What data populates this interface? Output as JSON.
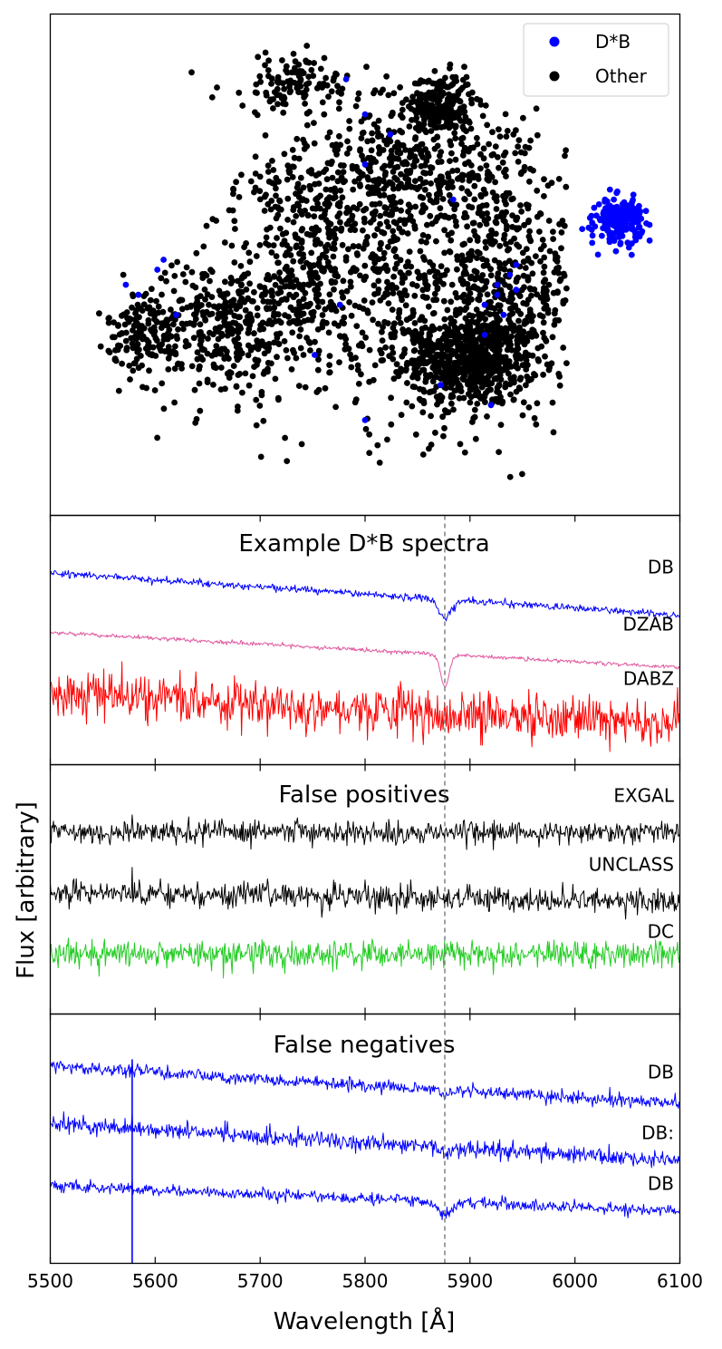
{
  "colors": {
    "dstarb": "#0000ff",
    "other": "#000000",
    "pink": "#e05aa0",
    "red": "#ff0000",
    "green": "#22cc22",
    "marker_line": "#808080"
  },
  "chart_data": [
    {
      "type": "scatter",
      "panel": "embedding",
      "title": "",
      "legend": {
        "placement": "top-right",
        "entries": [
          "D*B",
          "Other"
        ]
      },
      "ticks": "none",
      "series": [
        {
          "name": "Other",
          "clusters": [
            {
              "cx": 0.67,
              "cy": 0.31,
              "sx": 0.05,
              "sy": 0.045,
              "n": 600
            },
            {
              "cx": 0.62,
              "cy": 0.45,
              "sx": 0.14,
              "sy": 0.14,
              "n": 800
            },
            {
              "cx": 0.62,
              "cy": 0.82,
              "sx": 0.025,
              "sy": 0.03,
              "n": 250
            },
            {
              "cx": 0.62,
              "cy": 0.7,
              "sx": 0.08,
              "sy": 0.06,
              "n": 250
            },
            {
              "cx": 0.15,
              "cy": 0.37,
              "sx": 0.03,
              "sy": 0.04,
              "n": 140
            },
            {
              "cx": 0.27,
              "cy": 0.37,
              "sx": 0.06,
              "sy": 0.07,
              "n": 300
            },
            {
              "cx": 0.4,
              "cy": 0.45,
              "sx": 0.07,
              "sy": 0.08,
              "n": 250
            },
            {
              "cx": 0.39,
              "cy": 0.86,
              "sx": 0.06,
              "sy": 0.03,
              "n": 120
            },
            {
              "cx": 0.4,
              "cy": 0.65,
              "sx": 0.05,
              "sy": 0.05,
              "n": 120
            },
            {
              "cx": 0.73,
              "cy": 0.45,
              "sx": 0.06,
              "sy": 0.08,
              "n": 200
            },
            {
              "cx": 0.52,
              "cy": 0.65,
              "sx": 0.04,
              "sy": 0.08,
              "n": 150
            }
          ]
        },
        {
          "name": "D*B",
          "clusters": [
            {
              "cx": 0.905,
              "cy": 0.59,
              "sx": 0.018,
              "sy": 0.02,
              "n": 220
            }
          ],
          "outliers": [
            [
              0.5,
              0.8
            ],
            [
              0.54,
              0.76
            ],
            [
              0.5,
              0.7
            ],
            [
              0.64,
              0.63
            ],
            [
              0.87,
              0.52
            ],
            [
              0.86,
              0.57
            ],
            [
              0.17,
              0.49
            ],
            [
              0.18,
              0.51
            ],
            [
              0.12,
              0.46
            ],
            [
              0.14,
              0.44
            ],
            [
              0.2,
              0.4
            ],
            [
              0.46,
              0.42
            ],
            [
              0.42,
              0.32
            ],
            [
              0.62,
              0.26
            ],
            [
              0.71,
              0.46
            ],
            [
              0.69,
              0.42
            ],
            [
              0.71,
              0.44
            ],
            [
              0.72,
              0.4
            ],
            [
              0.74,
              0.45
            ],
            [
              0.73,
              0.48
            ],
            [
              0.74,
              0.5
            ],
            [
              0.69,
              0.36
            ],
            [
              0.7,
              0.22
            ],
            [
              0.5,
              0.19
            ],
            [
              0.47,
              0.87
            ]
          ]
        }
      ]
    },
    {
      "type": "line",
      "panel": "example",
      "title": "Example D*B spectra",
      "xlim": [
        5500,
        6100
      ],
      "ylim": [
        0,
        1
      ],
      "series": [
        {
          "name": "DB",
          "label": "DB",
          "color": "#0000ff",
          "start": 0.77,
          "end": 0.6,
          "noise": 0.007,
          "line_depth": 0.075,
          "line_width": 6
        },
        {
          "name": "DZAB",
          "label": "DZAB",
          "color": "#e05aa0",
          "start": 0.53,
          "end": 0.39,
          "noise": 0.004,
          "line_depth": 0.13,
          "line_width": 4
        },
        {
          "name": "DABZ",
          "label": "DABZ",
          "color": "#ff0000",
          "start": 0.29,
          "end": 0.16,
          "noise": 0.045,
          "line_depth": 0.03,
          "line_width": 5
        }
      ],
      "marker_line": 5876
    },
    {
      "type": "line",
      "panel": "false_pos",
      "title": "False positives",
      "xlim": [
        5500,
        6100
      ],
      "ylim": [
        0,
        1
      ],
      "series": [
        {
          "name": "EXGAL",
          "label": "EXGAL",
          "color": "#000000",
          "start": 0.73,
          "end": 0.73,
          "noise": 0.022,
          "line_depth": 0,
          "line_width": 5
        },
        {
          "name": "UNCLASS",
          "label": "UNCLASS",
          "color": "#000000",
          "start": 0.49,
          "end": 0.45,
          "noise": 0.024,
          "line_depth": 0,
          "line_width": 5
        },
        {
          "name": "DC",
          "label": "DC",
          "color": "#22cc22",
          "start": 0.24,
          "end": 0.24,
          "noise": 0.028,
          "line_depth": 0,
          "line_width": 5
        }
      ],
      "marker_line": 5876
    },
    {
      "type": "line",
      "panel": "false_neg",
      "title": "False negatives",
      "xlim": [
        5500,
        6100
      ],
      "ylim": [
        0,
        1
      ],
      "series": [
        {
          "name": "DB (1)",
          "label": "DB",
          "color": "#0000ff",
          "start": 0.79,
          "end": 0.64,
          "noise": 0.013,
          "line_depth": 0.02,
          "line_width": 5
        },
        {
          "name": "DB:",
          "label": "DB:",
          "color": "#0000ff",
          "start": 0.56,
          "end": 0.41,
          "noise": 0.016,
          "line_depth": 0.02,
          "line_width": 5
        },
        {
          "name": "DB (2)",
          "label": "DB",
          "color": "#0000ff",
          "start": 0.31,
          "end": 0.21,
          "noise": 0.011,
          "line_depth": 0.06,
          "line_width": 6
        }
      ],
      "marker_line": 5876
    }
  ],
  "axes": {
    "xlabel": "Wavelength [Å]",
    "ylabel": "Flux [arbitrary]",
    "xticks": [
      "5500",
      "5600",
      "5700",
      "5800",
      "5900",
      "6000",
      "6100"
    ]
  },
  "legend": {
    "dstarb": "D*B",
    "other": "Other"
  }
}
